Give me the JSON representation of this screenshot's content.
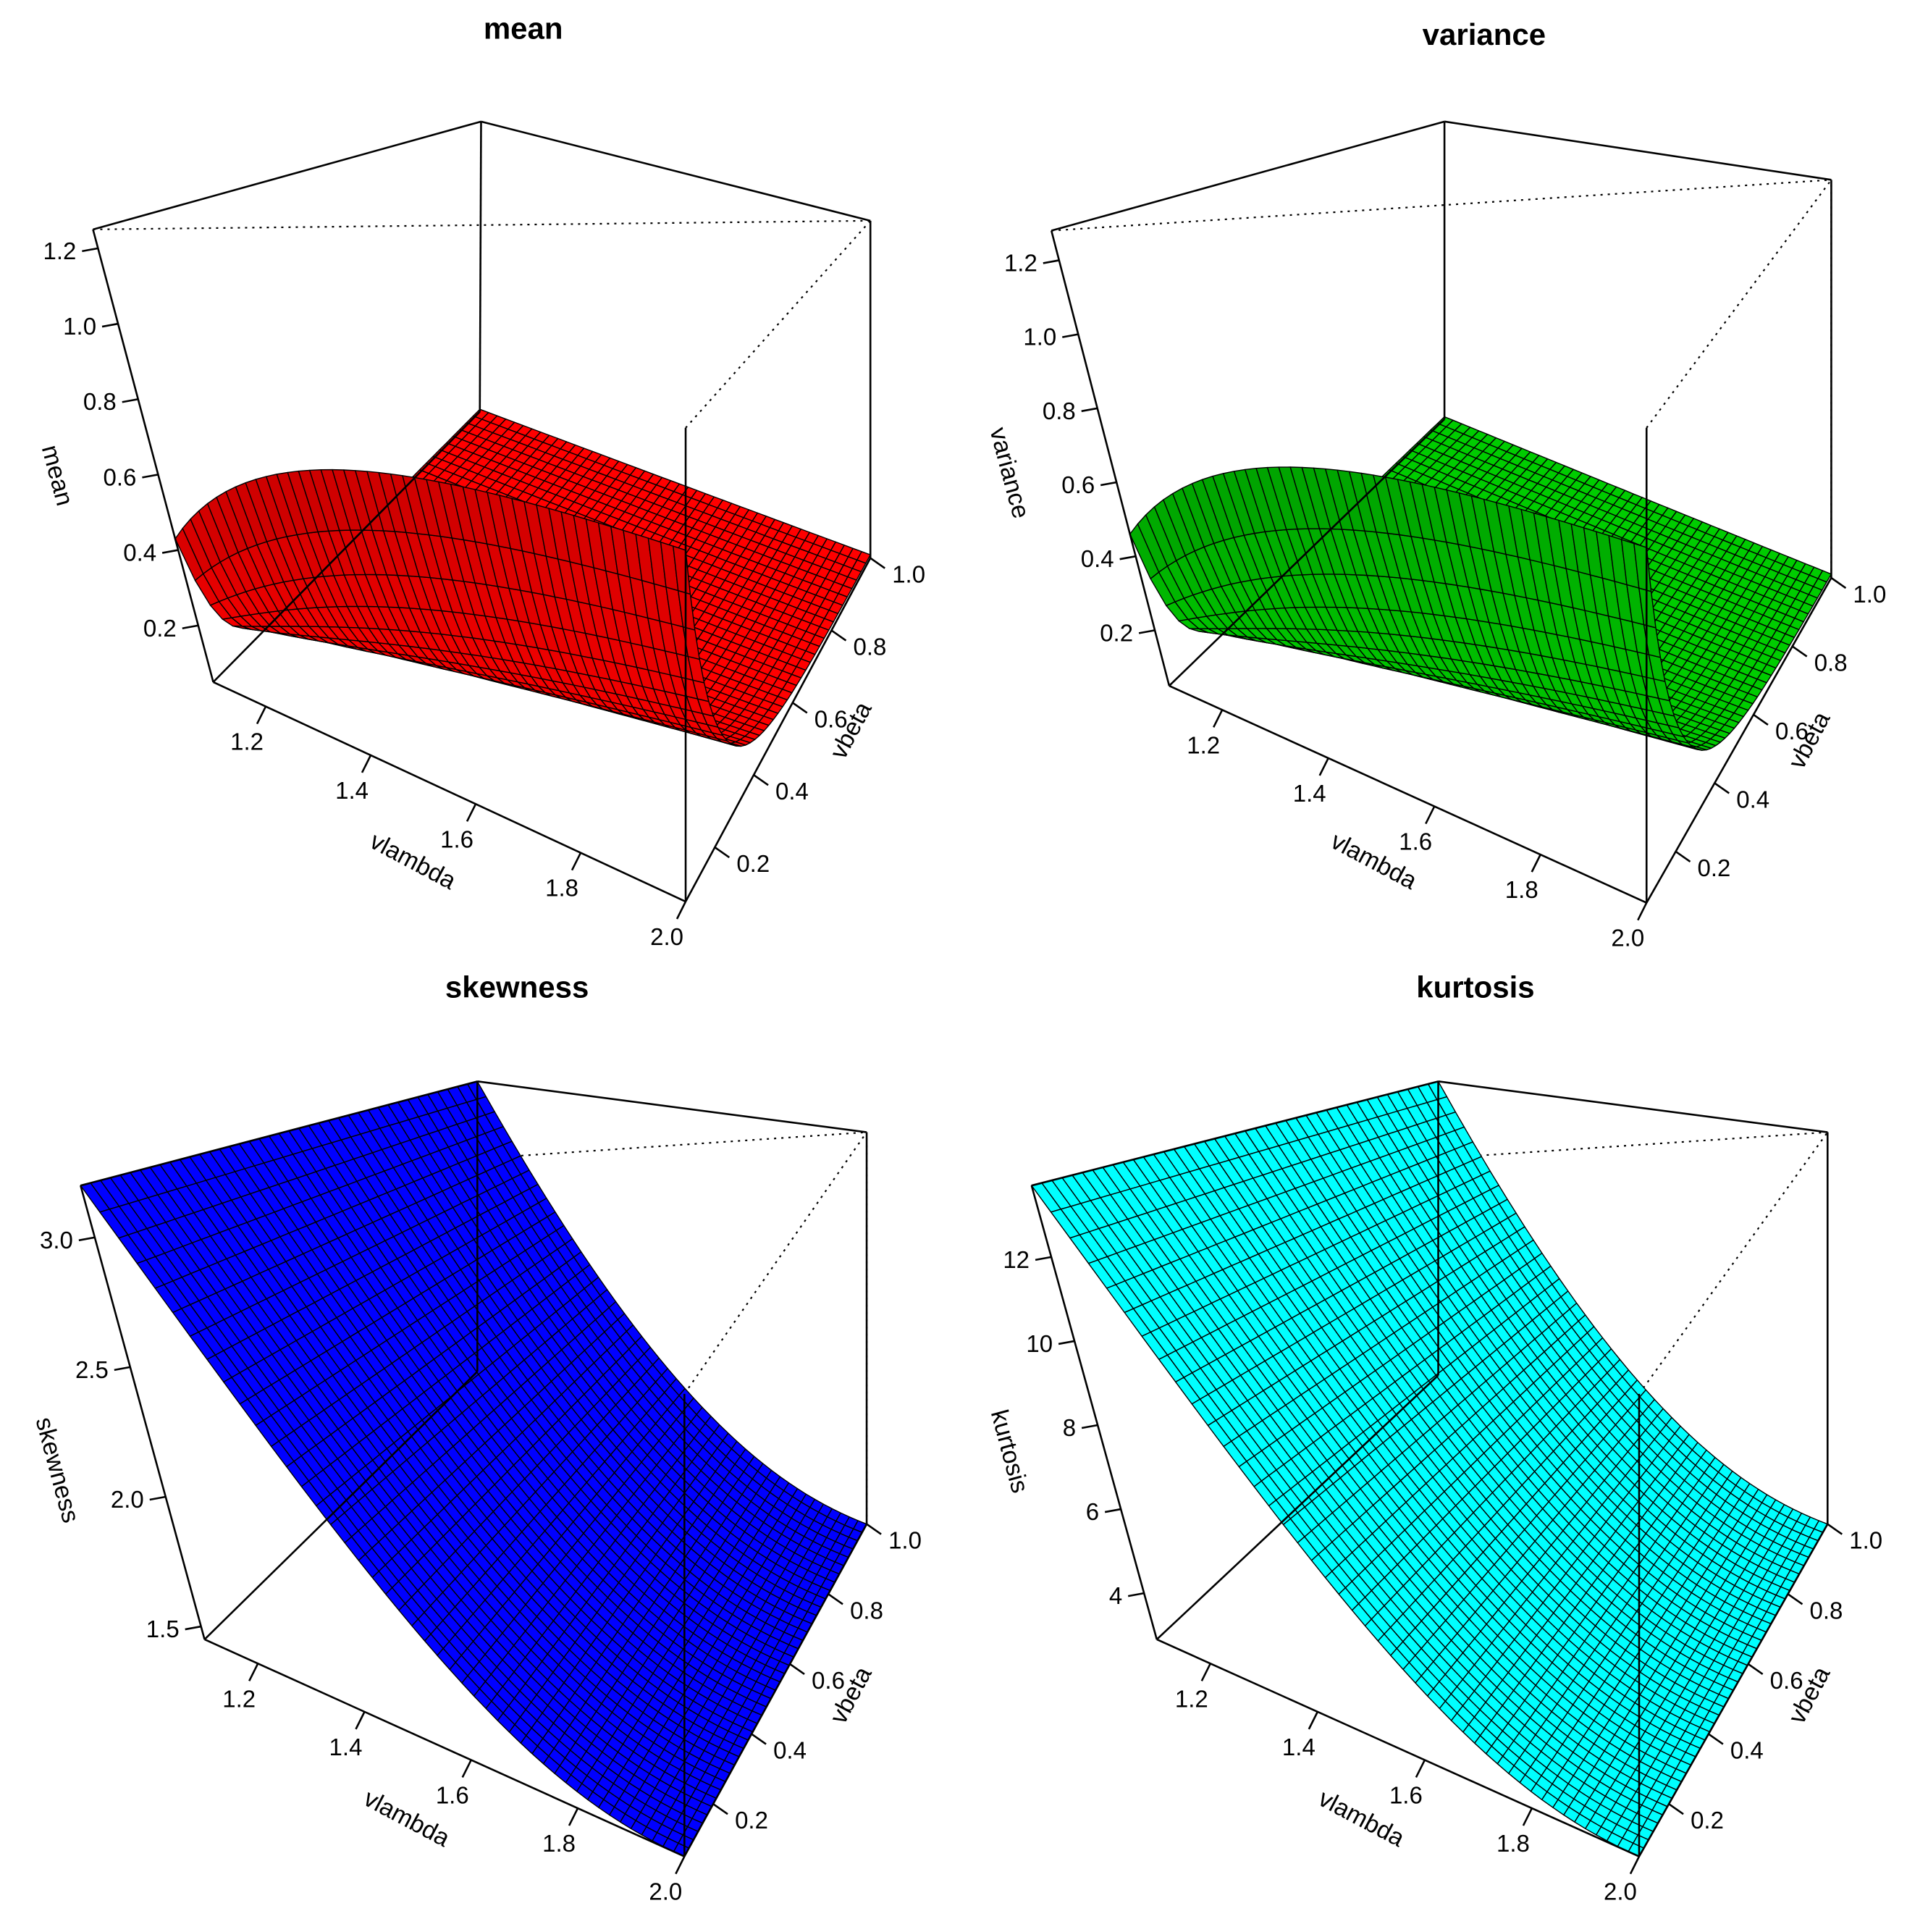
{
  "chart_data": [
    {
      "type": "surface3d",
      "title": "mean",
      "xlabel": "vlambda",
      "ylabel": "vbeta",
      "zlabel": "mean",
      "xlim": [
        1.1,
        2.0
      ],
      "ylim": [
        0.05,
        1.0
      ],
      "zlim": [
        0.05,
        1.25
      ],
      "x_ticks": [
        "1.2",
        "1.4",
        "1.6",
        "1.8",
        "2.0"
      ],
      "y_ticks": [
        "0.2",
        "0.4",
        "0.6",
        "0.8",
        "1.0"
      ],
      "z_ticks": [
        "0.2",
        "0.4",
        "0.6",
        "0.8",
        "1.0",
        "1.2"
      ],
      "x_tick_values": [
        1.2,
        1.4,
        1.6,
        1.8,
        2.0
      ],
      "y_tick_values": [
        0.2,
        0.4,
        0.6,
        0.8,
        1.0
      ],
      "z_tick_values": [
        0.2,
        0.4,
        0.6,
        0.8,
        1.0,
        1.2
      ],
      "surface_color": "#ff0000",
      "shape": "ridge",
      "edge_values": {
        "at_vbeta_min": [
          0.43,
          0.94
        ],
        "at_vbeta_max": [
          0.06,
          0.06
        ]
      }
    },
    {
      "type": "surface3d",
      "title": "variance",
      "xlabel": "vlambda",
      "ylabel": "vbeta",
      "zlabel": "variance",
      "xlim": [
        1.1,
        2.0
      ],
      "ylim": [
        0.05,
        1.0
      ],
      "zlim": [
        0.05,
        1.28
      ],
      "x_ticks": [
        "1.2",
        "1.4",
        "1.6",
        "1.8",
        "2.0"
      ],
      "y_ticks": [
        "0.2",
        "0.4",
        "0.6",
        "0.8",
        "1.0"
      ],
      "z_ticks": [
        "0.2",
        "0.4",
        "0.6",
        "0.8",
        "1.0",
        "1.2"
      ],
      "x_tick_values": [
        1.2,
        1.4,
        1.6,
        1.8,
        2.0
      ],
      "y_tick_values": [
        0.2,
        0.4,
        0.6,
        0.8,
        1.0
      ],
      "z_tick_values": [
        0.2,
        0.4,
        0.6,
        0.8,
        1.0,
        1.2
      ],
      "surface_color": "#00cc00",
      "shape": "ridge",
      "edge_values": {
        "at_vbeta_min": [
          0.46,
          0.97
        ],
        "at_vbeta_max": [
          0.06,
          0.06
        ]
      }
    },
    {
      "type": "surface3d",
      "title": "skewness",
      "xlabel": "vlambda",
      "ylabel": "vbeta",
      "zlabel": "skewness",
      "xlim": [
        1.1,
        2.0
      ],
      "ylim": [
        0.05,
        1.0
      ],
      "zlim": [
        1.45,
        3.2
      ],
      "x_ticks": [
        "1.2",
        "1.4",
        "1.6",
        "1.8",
        "2.0"
      ],
      "y_ticks": [
        "0.2",
        "0.4",
        "0.6",
        "0.8",
        "1.0"
      ],
      "z_ticks": [
        "1.5",
        "2.0",
        "2.5",
        "3.0"
      ],
      "x_tick_values": [
        1.2,
        1.4,
        1.6,
        1.8,
        2.0
      ],
      "y_tick_values": [
        0.2,
        0.4,
        0.6,
        0.8,
        1.0
      ],
      "z_tick_values": [
        1.5,
        2.0,
        2.5,
        3.0
      ],
      "surface_color": "#0000ff",
      "shape": "decay",
      "edge_values": {
        "at_vlambda_min": 3.2,
        "at_vlambda_max": 1.45
      }
    },
    {
      "type": "surface3d",
      "title": "kurtosis",
      "xlabel": "vlambda",
      "ylabel": "vbeta",
      "zlabel": "kurtosis",
      "xlim": [
        1.1,
        2.0
      ],
      "ylim": [
        0.05,
        1.0
      ],
      "zlim": [
        2.9,
        13.7
      ],
      "x_ticks": [
        "1.2",
        "1.4",
        "1.6",
        "1.8",
        "2.0"
      ],
      "y_ticks": [
        "0.2",
        "0.4",
        "0.6",
        "0.8",
        "1.0"
      ],
      "z_ticks": [
        "4",
        "6",
        "8",
        "10",
        "12"
      ],
      "x_tick_values": [
        1.2,
        1.4,
        1.6,
        1.8,
        2.0
      ],
      "y_tick_values": [
        0.2,
        0.4,
        0.6,
        0.8,
        1.0
      ],
      "z_tick_values": [
        4,
        6,
        8,
        10,
        12
      ],
      "surface_color": "#00ffff",
      "shape": "decay",
      "edge_values": {
        "at_vlambda_min": 13.7,
        "at_vlambda_max": 2.9
      }
    }
  ]
}
